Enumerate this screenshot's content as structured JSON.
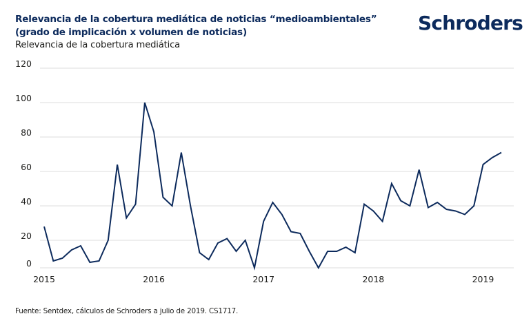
{
  "header": {
    "title": "Relevancia de la cobertura mediática de noticias “medioambientales” (grado de implicación x volumen de noticias)",
    "subtitle": "Relevancia de la cobertura mediática",
    "logo": "Schroders"
  },
  "footer": {
    "source": "Fuente: Sentdex, cálculos de Schroders a julio de 2019. CS1717."
  },
  "colors": {
    "series": "#0c2a5c",
    "grid": "#dcdcdc",
    "brand": "#0c2a5c"
  },
  "chart_data": {
    "type": "line",
    "title": "Relevancia de la cobertura mediática de noticias “medioambientales” (grado de implicación x volumen de noticias)",
    "ylabel": "Relevancia de la cobertura mediática",
    "xlabel": "",
    "ylim": [
      0,
      120
    ],
    "yticks": [
      0,
      20,
      40,
      60,
      80,
      100,
      120
    ],
    "xtick_labels": [
      "2015",
      "2016",
      "2017",
      "2018",
      "2019"
    ],
    "xtick_month_index": [
      0,
      12,
      24,
      36,
      48
    ],
    "grid": true,
    "legend": "none",
    "x_start": "2015-01",
    "frequency": "monthly",
    "series": [
      {
        "name": "Relevancia de la cobertura mediática",
        "values": [
          28,
          5,
          7,
          13,
          16,
          4,
          5,
          20,
          64,
          33,
          41,
          100,
          83,
          45,
          40,
          71,
          40,
          11,
          6,
          18,
          21,
          12,
          20,
          0,
          31,
          42,
          35,
          25,
          24,
          12,
          0,
          12,
          12,
          15,
          11,
          41,
          37,
          31,
          53,
          43,
          40,
          61,
          39,
          42,
          38,
          37,
          35,
          40,
          64,
          68,
          71
        ]
      }
    ]
  }
}
